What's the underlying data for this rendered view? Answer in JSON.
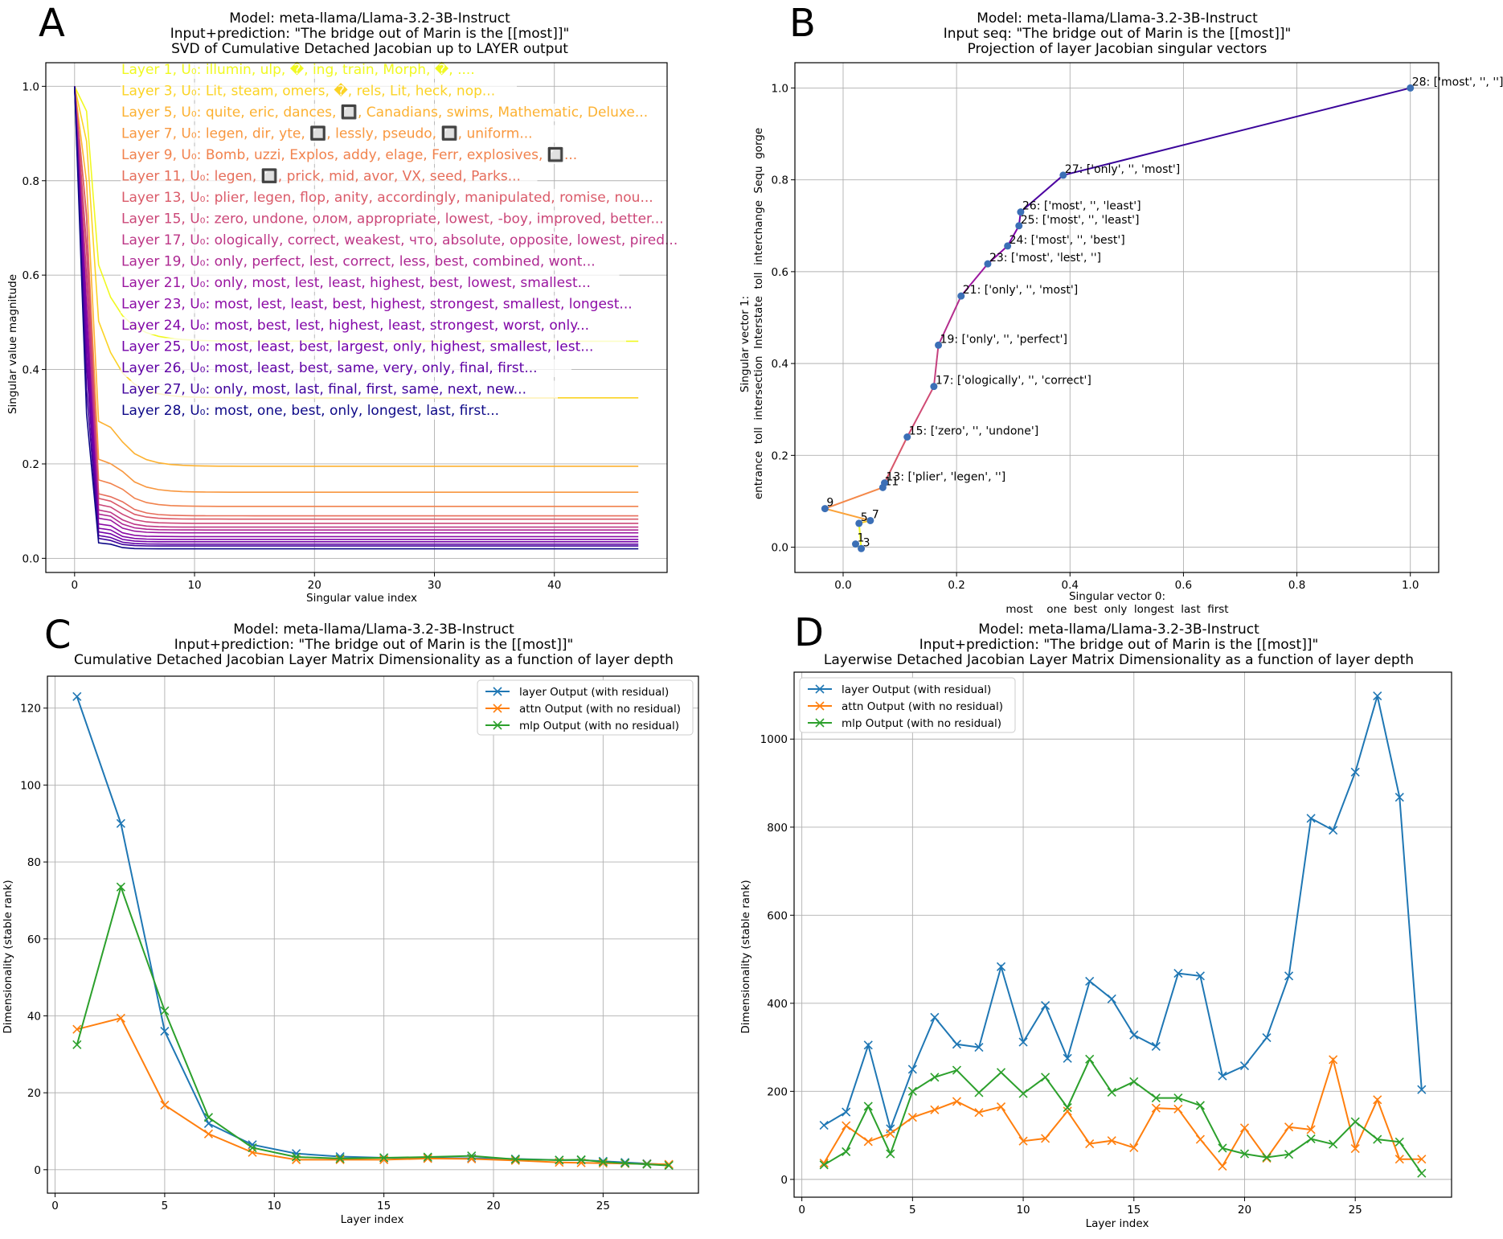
{
  "chart_data": [
    {
      "panel": "A",
      "type": "line",
      "title": "Model: meta-llama/Llama-3.2-3B-Instruct",
      "subtitle": "Input+prediction: \"The bridge out of Marin is the [[most]]\"",
      "subtitle2": "SVD of Cumulative Detached Jacobian up to LAYER output",
      "xlabel": "Singular value index",
      "ylabel": "Singular value magnitude",
      "xlim": [
        -2.4,
        49.4
      ],
      "ylim": [
        -0.03,
        1.05
      ],
      "xticks": [
        0,
        10,
        20,
        30,
        40
      ],
      "yticks": [
        0.0,
        0.2,
        0.4,
        0.6,
        0.8,
        1.0
      ],
      "grid": true,
      "colors": [
        "#f0f921",
        "#fdca26",
        "#fba238",
        "#f48849",
        "#e76f5a",
        "#d8576b",
        "#c5407e",
        "#b42e8d",
        "#9c179e",
        "#8b0aa5",
        "#7e03a8",
        "#6a00a8",
        "#4c02a1",
        "#0d0887"
      ],
      "series": [
        {
          "name": "Layer 1, U₀: illumin, ulp, �, ing, train, Morph, �, ....",
          "tail": 0.46
        },
        {
          "name": "Layer 3, U₀: Lit, steam, omers, �, rels, Lit, heck, nop...",
          "tail": 0.34
        },
        {
          "name": "Layer 5, U₀: quite, eric, dances, 🔲, Canadians, swims, Mathematic, Deluxe...",
          "tail": 0.195
        },
        {
          "name": "Layer 7, U₀: legen, dir, yte, 🔲, lessly, pseudo, 🔲, uniform...",
          "tail": 0.14
        },
        {
          "name": "Layer 9, U₀: Bomb, uzzi, Explos, addy, elage, Ferr, explosives, 🔲...",
          "tail": 0.11
        },
        {
          "name": "Layer 11, U₀: legen, 🔲, prick, mid, avor, VX, seed, Parks...",
          "tail": 0.09
        },
        {
          "name": "Layer 13, U₀: plier, legen, flop, anity, accordingly, manipulated, romise, nou...",
          "tail": 0.083
        },
        {
          "name": "Layer 15, U₀: zero, undone, олом, appropriate, lowest, -boy, improved, better...",
          "tail": 0.074
        },
        {
          "name": "Layer 17, U₀: ologically, correct, weakest, что, absolute, opposite, lowest, pired...",
          "tail": 0.066
        },
        {
          "name": "Layer 19, U₀: only, perfect, lest, correct, less, best, combined, wont...",
          "tail": 0.06
        },
        {
          "name": "Layer 21, U₀: only, most, lest, least, highest, best, lowest, smallest...",
          "tail": 0.054
        },
        {
          "name": "Layer 23, U₀: most, lest, least, best, highest, strongest, smallest, longest...",
          "tail": 0.046
        },
        {
          "name": "Layer 24, U₀: most, best, lest, highest, least, strongest, worst, only...",
          "tail": 0.04
        },
        {
          "name": "Layer 25, U₀: most, least, best, largest, only, highest, smallest, lest...",
          "tail": 0.035
        },
        {
          "name": "Layer 26, U₀: most, least, best, same, very, only, final, first...",
          "tail": 0.03
        },
        {
          "name": "Layer 27, U₀: only, most, last, final, first, same, next, new...",
          "tail": 0.026
        },
        {
          "name": "Layer 28, U₀: most, one, best, only, longest, last, first...",
          "tail": 0.02
        }
      ]
    },
    {
      "panel": "B",
      "type": "scatter",
      "title": "Model: meta-llama/Llama-3.2-3B-Instruct",
      "subtitle": "Input seq: \"The bridge out of Marin is the [[most]]\"",
      "subtitle2": "Projection of layer Jacobian singular vectors",
      "xlabel": "Singular vector 0:",
      "xlabel2": "most    one  best  only  longest  last  first",
      "ylabel": "Singular vector 1:",
      "ylabel2": "entrance  toll  intersection  Interstate  toll  interchange  Sequ  gorge",
      "xlim": [
        -0.085,
        1.05
      ],
      "ylim": [
        -0.055,
        1.055
      ],
      "xticks": [
        0.0,
        0.2,
        0.4,
        0.6,
        0.8,
        1.0
      ],
      "yticks": [
        0.0,
        0.2,
        0.4,
        0.6,
        0.8,
        1.0
      ],
      "grid": true,
      "point_color": "#3b6fb6",
      "points": [
        {
          "layer": 1,
          "x": 0.022,
          "y": 0.007,
          "label": "1"
        },
        {
          "layer": 3,
          "x": 0.032,
          "y": -0.003,
          "label": "3"
        },
        {
          "layer": 5,
          "x": 0.028,
          "y": 0.052,
          "label": "5"
        },
        {
          "layer": 7,
          "x": 0.048,
          "y": 0.058,
          "label": "7"
        },
        {
          "layer": 9,
          "x": -0.032,
          "y": 0.084,
          "label": "9"
        },
        {
          "layer": 11,
          "x": 0.07,
          "y": 0.13,
          "label": "11"
        },
        {
          "layer": 13,
          "x": 0.073,
          "y": 0.14,
          "label": "13: ['plier', 'legen', '']"
        },
        {
          "layer": 15,
          "x": 0.113,
          "y": 0.24,
          "label": "15: ['zero', '', 'undone']"
        },
        {
          "layer": 17,
          "x": 0.16,
          "y": 0.35,
          "label": "17: ['ologically', '', 'correct']"
        },
        {
          "layer": 19,
          "x": 0.168,
          "y": 0.44,
          "label": "19: ['only', '', 'perfect']"
        },
        {
          "layer": 21,
          "x": 0.208,
          "y": 0.547,
          "label": "21: ['only', '', 'most']"
        },
        {
          "layer": 23,
          "x": 0.255,
          "y": 0.617,
          "label": "23: ['most', 'lest', '']"
        },
        {
          "layer": 24,
          "x": 0.29,
          "y": 0.656,
          "label": "24: ['most', '', 'best']"
        },
        {
          "layer": 25,
          "x": 0.31,
          "y": 0.7,
          "label": "25: ['most', '', 'least']"
        },
        {
          "layer": 26,
          "x": 0.313,
          "y": 0.73,
          "label": "26: ['most', '', 'least']"
        },
        {
          "layer": 27,
          "x": 0.388,
          "y": 0.81,
          "label": "27: ['only', '', 'most']"
        },
        {
          "layer": 28,
          "x": 1.0,
          "y": 1.0,
          "label": "28: ['most', '', '']"
        }
      ]
    },
    {
      "panel": "C",
      "type": "line",
      "title": "Model: meta-llama/Llama-3.2-3B-Instruct",
      "subtitle": "Input+prediction: \"The bridge out of Marin is the [[most]]\"",
      "subtitle2": "Cumulative Detached Jacobian Layer Matrix Dimensionality as a function of layer depth",
      "xlabel": "Layer index",
      "ylabel": "Dimensionality (stable rank)",
      "xlim": [
        -0.35,
        29.35
      ],
      "ylim": [
        -6.1,
        128.3
      ],
      "xticks": [
        0,
        5,
        10,
        15,
        20,
        25
      ],
      "yticks": [
        0,
        20,
        40,
        60,
        80,
        100,
        120
      ],
      "grid": true,
      "legend": "top-right",
      "x": [
        1,
        3,
        5,
        7,
        9,
        11,
        13,
        15,
        17,
        19,
        21,
        23,
        24,
        25,
        26,
        27,
        28
      ],
      "series": [
        {
          "name": "layer Output (with residual)",
          "color": "#1f77b4",
          "values": [
            123,
            90,
            36,
            12,
            6.5,
            4.2,
            3.4,
            3.1,
            3.0,
            3.0,
            2.8,
            2.5,
            2.5,
            2.2,
            1.9,
            1.6,
            1.3
          ]
        },
        {
          "name": "attn Output (with no residual)",
          "color": "#ff7f0e",
          "values": [
            36.5,
            39.4,
            16.8,
            9.3,
            4.5,
            2.6,
            2.6,
            2.6,
            2.9,
            2.8,
            2.4,
            1.9,
            1.8,
            1.7,
            1.6,
            1.5,
            1.4
          ]
        },
        {
          "name": "mlp Output (with no residual)",
          "color": "#2ca02c",
          "values": [
            32.5,
            73.5,
            41.3,
            13.6,
            5.7,
            3.3,
            2.9,
            3.1,
            3.3,
            3.6,
            2.7,
            2.5,
            2.6,
            2.0,
            1.7,
            1.4,
            1.1
          ]
        }
      ]
    },
    {
      "panel": "D",
      "type": "line",
      "title": "Model: meta-llama/Llama-3.2-3B-Instruct",
      "subtitle": "Input+prediction: \"The bridge out of Marin is the [[most]]\"",
      "subtitle2": "Layerwise Detached Jacobian Layer Matrix Dimensionality as a function of layer depth",
      "xlabel": "Layer index",
      "ylabel": "Dimensionality (stable rank)",
      "xlim": [
        -0.35,
        29.35
      ],
      "ylim": [
        -40.4,
        1152
      ],
      "xticks": [
        0,
        5,
        10,
        15,
        20,
        25
      ],
      "yticks": [
        0,
        200,
        400,
        600,
        800,
        1000
      ],
      "grid": true,
      "legend": "top-left",
      "x": [
        1,
        2,
        3,
        4,
        5,
        6,
        7,
        8,
        9,
        10,
        11,
        12,
        13,
        14,
        15,
        16,
        17,
        18,
        19,
        20,
        21,
        22,
        23,
        24,
        25,
        26,
        27,
        28
      ],
      "series": [
        {
          "name": "layer Output (with residual)",
          "color": "#1f77b4",
          "values": [
            123,
            153,
            305,
            115,
            250,
            368,
            307,
            300,
            483,
            312,
            395,
            275,
            450,
            410,
            328,
            302,
            468,
            462,
            235,
            258,
            322,
            462,
            820,
            793,
            925,
            1098,
            868,
            204
          ]
        },
        {
          "name": "attn Output (with no residual)",
          "color": "#ff7f0e",
          "values": [
            37,
            122,
            86,
            104,
            141,
            158,
            177,
            152,
            165,
            87,
            93,
            155,
            81,
            88,
            72,
            162,
            160,
            91,
            30,
            117,
            48,
            119,
            113,
            272,
            70,
            181,
            46,
            46
          ]
        },
        {
          "name": "mlp Output (with no residual)",
          "color": "#2ca02c",
          "values": [
            33,
            63,
            166,
            58,
            200,
            232,
            248,
            197,
            243,
            195,
            232,
            163,
            273,
            198,
            222,
            185,
            185,
            168,
            71,
            58,
            50,
            57,
            92,
            80,
            131,
            91,
            85,
            14
          ]
        }
      ]
    }
  ],
  "panel_letters": [
    "A",
    "B",
    "C",
    "D"
  ]
}
